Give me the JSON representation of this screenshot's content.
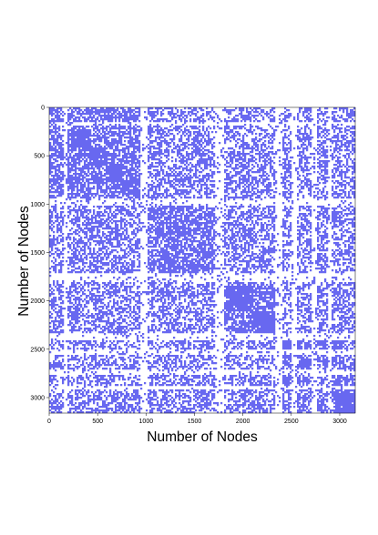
{
  "chart_data": {
    "type": "heatmap",
    "title": "",
    "xlabel": "Number of Nodes",
    "ylabel": "Number of Nodes",
    "xlim": [
      0,
      3160
    ],
    "ylim": [
      3160,
      0
    ],
    "x_ticks": [
      0,
      500,
      1000,
      1500,
      2000,
      2500,
      3000
    ],
    "y_ticks": [
      0,
      500,
      1000,
      1500,
      2000,
      2500,
      3000
    ],
    "x_tick_labels": [
      "0",
      "500",
      "1000",
      "1500",
      "2000",
      "2500",
      "3000"
    ],
    "y_tick_labels": [
      "0",
      "500",
      "1000",
      "1500",
      "2000",
      "2500",
      "3000"
    ],
    "grid": false,
    "colors": {
      "filled": "#6868f0",
      "empty": "#ffffff"
    },
    "description": "",
    "groups": [
      {
        "name": "",
        "start": 0,
        "end": 1010,
        "density": 0.7
      },
      {
        "name": "",
        "start": 1010,
        "end": 1800,
        "density": 0.72
      },
      {
        "name": "",
        "start": 1800,
        "end": 2400,
        "density": 0.7
      },
      {
        "name": "",
        "start": 2400,
        "end": 3160,
        "density": 0.68
      }
    ],
    "dense_blocks": [
      {
        "start": 0,
        "end": 60
      },
      {
        "start": 220,
        "end": 420
      },
      {
        "start": 420,
        "end": 600
      },
      {
        "start": 600,
        "end": 760
      },
      {
        "start": 760,
        "end": 900
      },
      {
        "start": 900,
        "end": 1010
      },
      {
        "start": 1850,
        "end": 2100
      },
      {
        "start": 2100,
        "end": 2330
      },
      {
        "start": 2400,
        "end": 2600
      },
      {
        "start": 2600,
        "end": 2700
      },
      {
        "start": 2960,
        "end": 3160
      }
    ],
    "sparse_bands": [
      {
        "start": 150,
        "end": 190
      },
      {
        "start": 940,
        "end": 1010
      },
      {
        "start": 1720,
        "end": 1800
      },
      {
        "start": 2340,
        "end": 2400
      },
      {
        "start": 2500,
        "end": 2560
      },
      {
        "start": 2700,
        "end": 2760
      },
      {
        "start": 2880,
        "end": 2920
      }
    ],
    "between_group_density": 0.52
  }
}
